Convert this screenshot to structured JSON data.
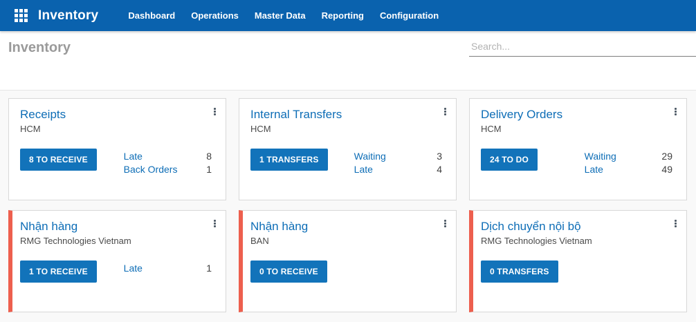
{
  "navbar": {
    "app_title": "Inventory",
    "items": [
      {
        "label": "Dashboard"
      },
      {
        "label": "Operations"
      },
      {
        "label": "Master Data"
      },
      {
        "label": "Reporting"
      },
      {
        "label": "Configuration"
      }
    ]
  },
  "control_panel": {
    "page_title": "Inventory",
    "search_placeholder": "Search..."
  },
  "icons": {
    "apps_grid": "grid-3x3-white-squares",
    "card_menu": "kebab-vertical-dots"
  },
  "colors": {
    "navbar_bg": "#0a62ae",
    "button_bg": "#1273ba",
    "link_blue": "#0d6db6",
    "alert_red": "#ed5f4e",
    "page_bg": "#f9f9f9",
    "card_border": "#d8d8d8",
    "title_gray": "#9a9a9a"
  },
  "cards": [
    {
      "title": "Receipts",
      "subtitle": "HCM",
      "button": "8 TO RECEIVE",
      "alert": false,
      "stats": [
        {
          "label": "Late",
          "value": "8"
        },
        {
          "label": "Back Orders",
          "value": "1"
        }
      ]
    },
    {
      "title": "Internal Transfers",
      "subtitle": "HCM",
      "button": "1 TRANSFERS",
      "alert": false,
      "stats": [
        {
          "label": "Waiting",
          "value": "3"
        },
        {
          "label": "Late",
          "value": "4"
        }
      ]
    },
    {
      "title": "Delivery Orders",
      "subtitle": "HCM",
      "button": "24 TO DO",
      "alert": false,
      "stats": [
        {
          "label": "Waiting",
          "value": "29"
        },
        {
          "label": "Late",
          "value": "49"
        }
      ]
    },
    {
      "title": "Nhận hàng",
      "subtitle": "RMG Technologies Vietnam",
      "button": "1 TO RECEIVE",
      "alert": true,
      "stats": [
        {
          "label": "Late",
          "value": "1"
        }
      ]
    },
    {
      "title": "Nhận hàng",
      "subtitle": "BAN",
      "button": "0 TO RECEIVE",
      "alert": true,
      "stats": []
    },
    {
      "title": "Dịch chuyển nội bộ",
      "subtitle": "RMG Technologies Vietnam",
      "button": "0 TRANSFERS",
      "alert": true,
      "stats": []
    }
  ]
}
